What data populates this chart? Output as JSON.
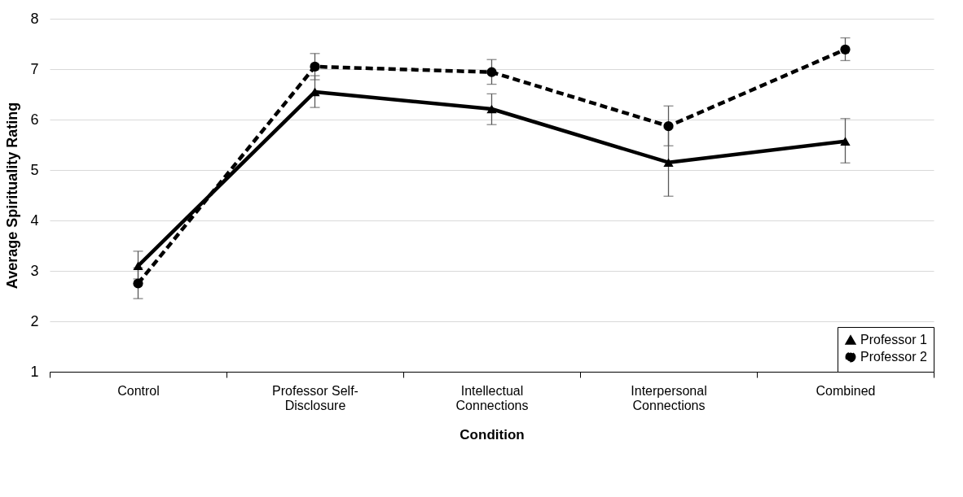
{
  "chart_data": {
    "type": "line",
    "xlabel": "Condition",
    "ylabel": "Average Spirituality Rating",
    "categories": [
      "Control",
      "Professor Self-Disclosure",
      "Intellectual Connections",
      "Interpersonal Connections",
      "Combined"
    ],
    "series": [
      {
        "name": "Professor 1",
        "color": "#000000",
        "marker": "triangle",
        "line_style": "solid",
        "values": [
          3.1,
          6.55,
          6.21,
          5.15,
          5.57
        ],
        "errors": [
          [
            2.84,
            3.39
          ],
          [
            6.24,
            6.87
          ],
          [
            5.9,
            6.51
          ],
          [
            4.48,
            5.83
          ],
          [
            5.14,
            6.02
          ]
        ]
      },
      {
        "name": "Professor 2",
        "color": "#000000",
        "marker": "circle",
        "line_style": "dashed",
        "values": [
          2.75,
          7.05,
          6.94,
          5.87,
          7.39
        ],
        "errors": [
          [
            2.45,
            3.06
          ],
          [
            6.79,
            7.31
          ],
          [
            6.7,
            7.19
          ],
          [
            5.48,
            6.27
          ],
          [
            7.17,
            7.62
          ]
        ]
      }
    ],
    "ylim": [
      1,
      8
    ],
    "yticks": [
      1,
      2,
      3,
      4,
      5,
      6,
      7,
      8
    ],
    "grid": "y",
    "legend": "bottom right"
  }
}
